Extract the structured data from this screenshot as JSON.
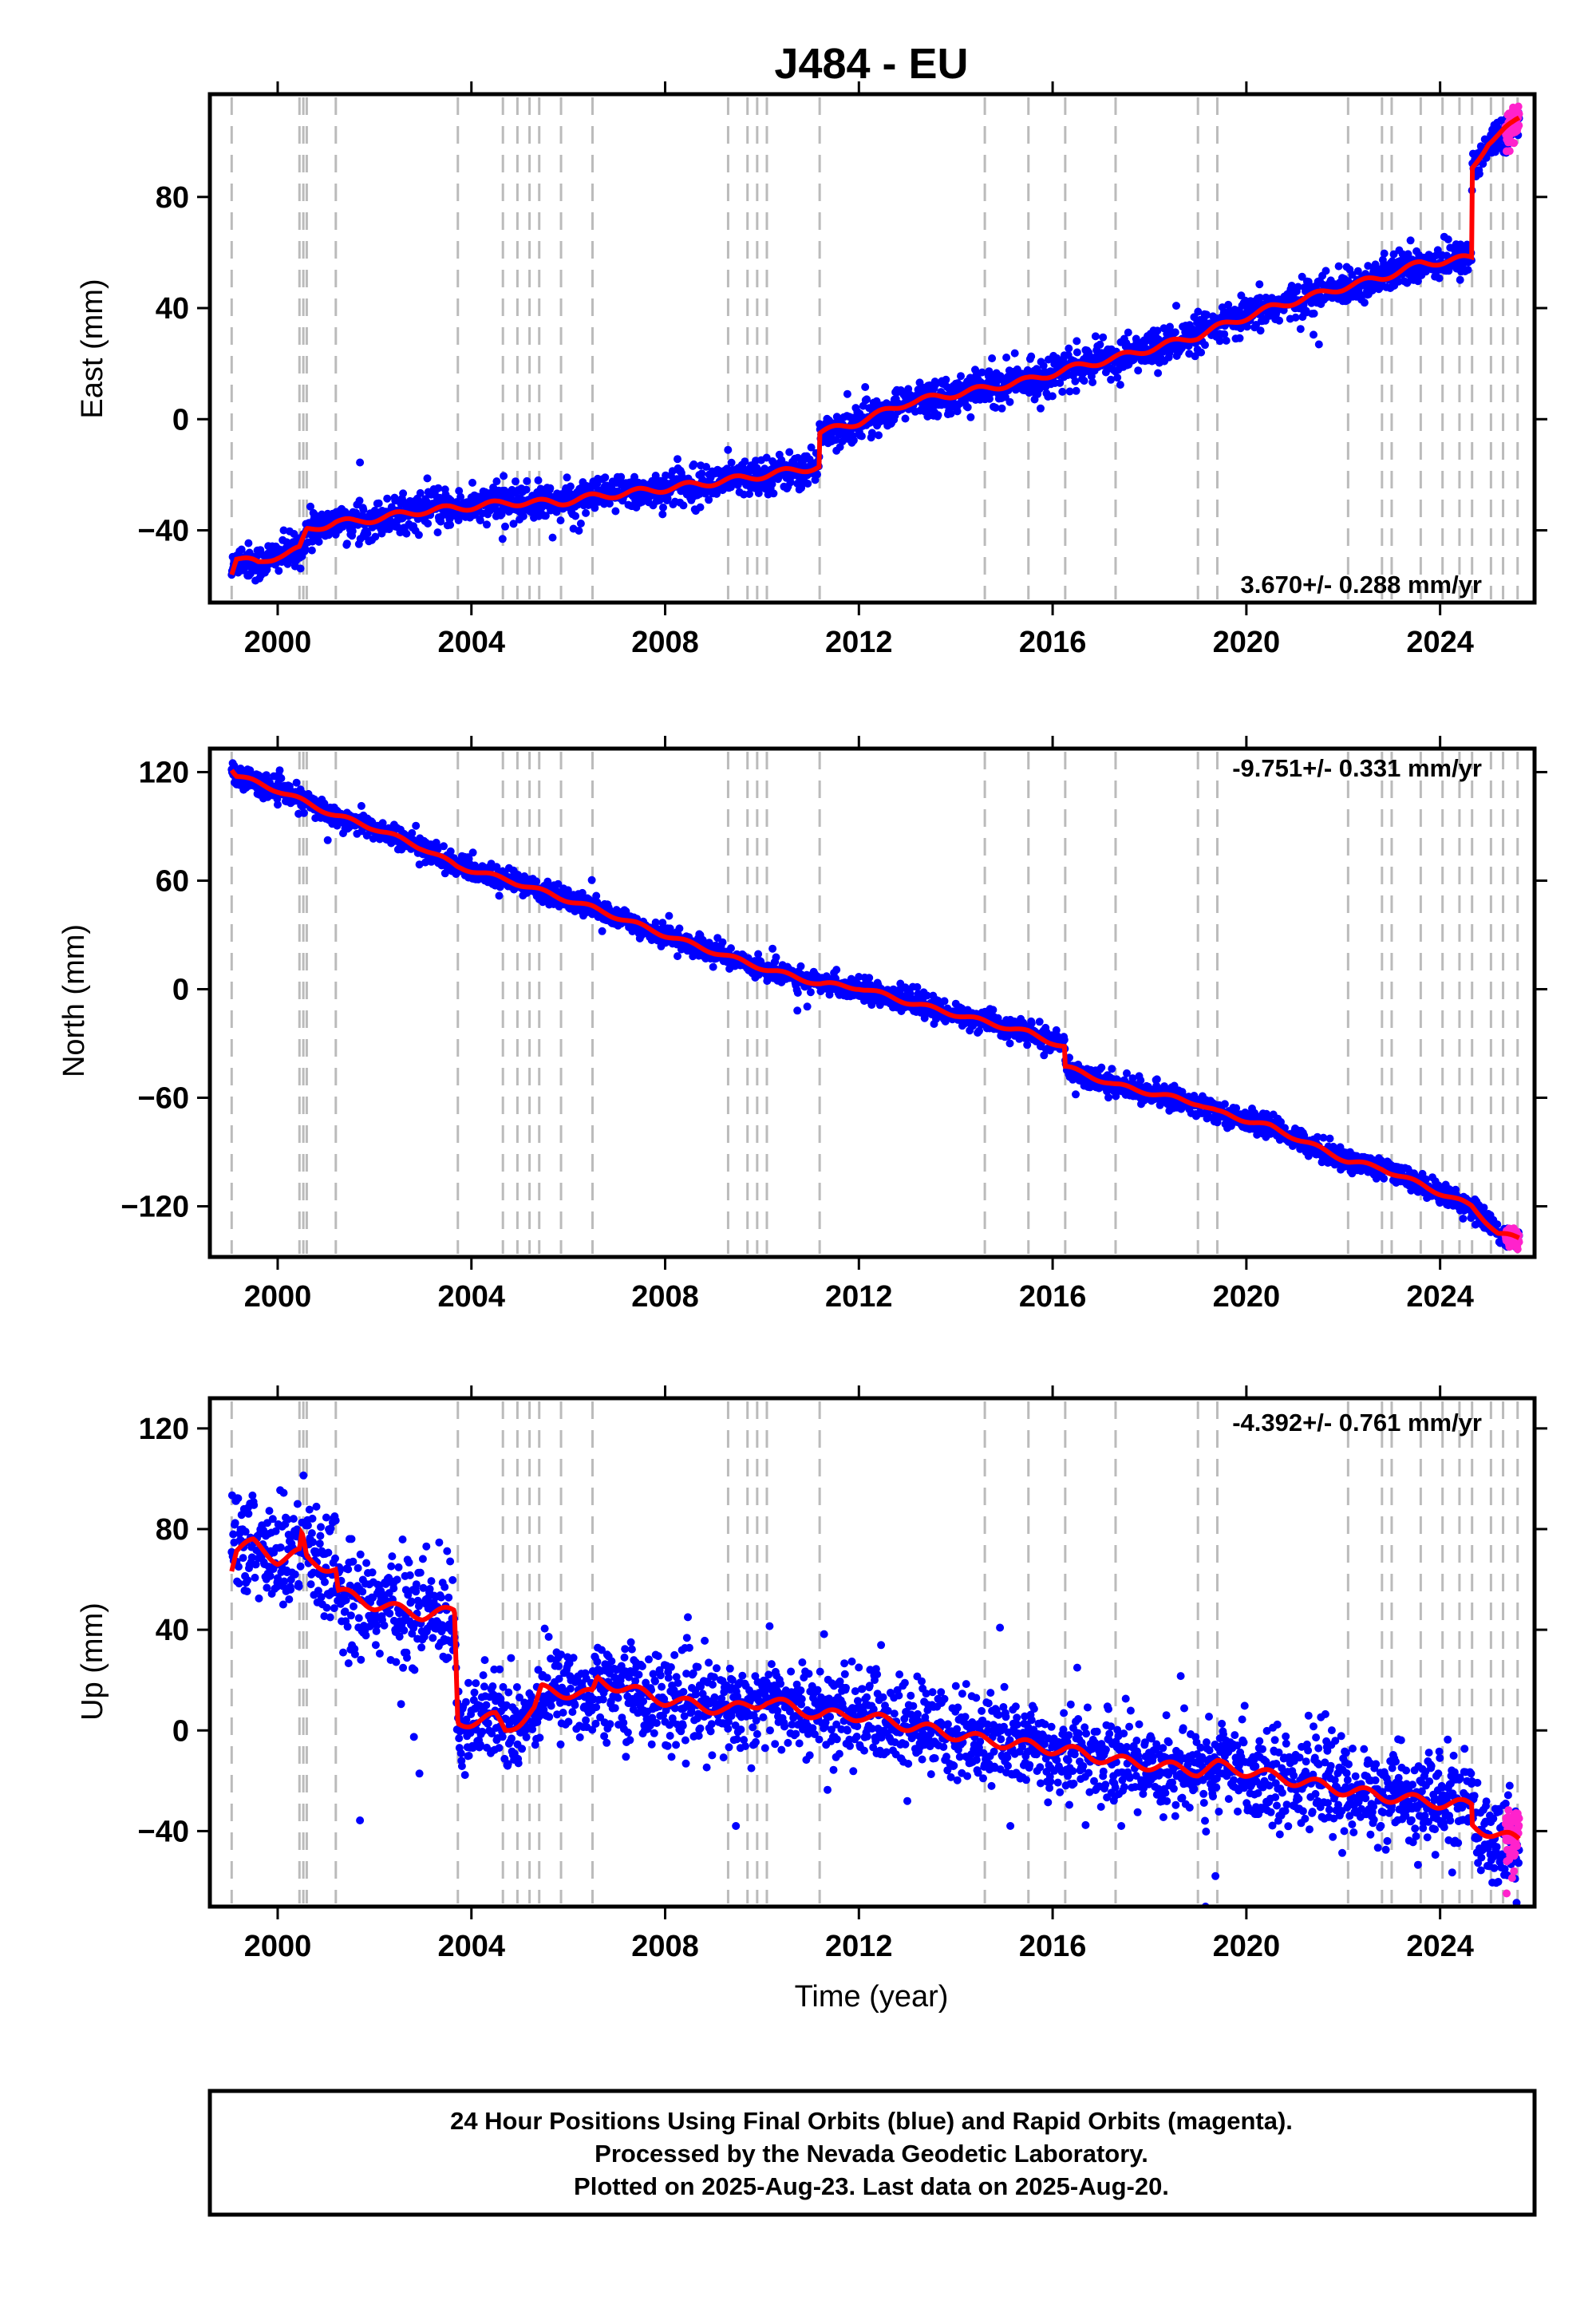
{
  "figure": {
    "title": "J484 - EU",
    "x_axis_label": "Time (year)",
    "footer_lines": [
      "24 Hour Positions Using Final Orbits (blue) and Rapid Orbits (magenta).",
      "Processed by the Nevada Geodetic Laboratory.",
      "Plotted on 2025-Aug-23. Last data on 2025-Aug-20."
    ],
    "colors": {
      "final": "#0000ff",
      "rapid": "#ff22cc",
      "model": "#ff0000",
      "steps": "#bbbbbb",
      "frame": "#000000"
    }
  },
  "chart_data": [
    {
      "type": "scatter",
      "component": "East",
      "ylabel": "East (mm)",
      "rate_label": "3.670+/- 0.288 mm/yr",
      "rate_position": "bottom-right",
      "xlim": [
        1998.6,
        2025.95
      ],
      "ylim": [
        -66,
        117
      ],
      "xticks": [
        2000,
        2004,
        2008,
        2012,
        2016,
        2020,
        2024
      ],
      "yticks": [
        -40,
        0,
        40,
        80
      ],
      "scatter_spread_mm": 3.2,
      "model": [
        [
          1999.05,
          -55
        ],
        [
          1999.15,
          -50
        ],
        [
          1999.6,
          -52
        ],
        [
          2000.0,
          -49
        ],
        [
          2000.45,
          -47
        ],
        [
          2000.6,
          -40
        ],
        [
          2001.2,
          -37
        ],
        [
          2001.6,
          -37
        ],
        [
          2003.0,
          -33
        ],
        [
          2003.7,
          -32
        ],
        [
          2004.8,
          -30
        ],
        [
          2005.8,
          -30
        ],
        [
          2006.5,
          -28
        ],
        [
          2008.0,
          -25
        ],
        [
          2009.3,
          -22
        ],
        [
          2010.1,
          -20
        ],
        [
          2011.18,
          -17
        ],
        [
          2011.19,
          -5
        ],
        [
          2012.0,
          -1
        ],
        [
          2013.0,
          6
        ],
        [
          2014.6,
          11
        ],
        [
          2015.5,
          14
        ],
        [
          2016.3,
          18
        ],
        [
          2017.3,
          22
        ],
        [
          2019.0,
          30
        ],
        [
          2019.4,
          33
        ],
        [
          2020.5,
          40
        ],
        [
          2022.1,
          48
        ],
        [
          2022.8,
          51
        ],
        [
          2023.6,
          56
        ],
        [
          2024.65,
          58
        ],
        [
          2024.66,
          90
        ],
        [
          2025.0,
          100
        ],
        [
          2025.5,
          106
        ],
        [
          2025.63,
          108
        ]
      ],
      "rapid_from": 2025.35
    },
    {
      "type": "scatter",
      "component": "North",
      "ylabel": "North (mm)",
      "rate_label": "-9.751+/- 0.331 mm/yr",
      "rate_position": "top-right",
      "xlim": [
        1998.6,
        2025.95
      ],
      "ylim": [
        -148,
        133
      ],
      "xticks": [
        2000,
        2004,
        2008,
        2012,
        2016,
        2020,
        2024
      ],
      "yticks": [
        -120,
        -60,
        0,
        60,
        120
      ],
      "scatter_spread_mm": 3.0,
      "model": [
        [
          1999.05,
          122
        ],
        [
          1999.15,
          118
        ],
        [
          2000.0,
          110
        ],
        [
          2001.2,
          96
        ],
        [
          2002.0,
          89
        ],
        [
          2003.0,
          78
        ],
        [
          2003.7,
          68
        ],
        [
          2004.8,
          60
        ],
        [
          2005.8,
          51
        ],
        [
          2006.5,
          45
        ],
        [
          2008.0,
          30
        ],
        [
          2009.3,
          18
        ],
        [
          2010.1,
          11
        ],
        [
          2011.2,
          3
        ],
        [
          2012.0,
          1
        ],
        [
          2013.0,
          -7
        ],
        [
          2014.6,
          -18
        ],
        [
          2015.5,
          -24
        ],
        [
          2016.25,
          -32
        ],
        [
          2016.26,
          -43
        ],
        [
          2017.3,
          -53
        ],
        [
          2019.0,
          -63
        ],
        [
          2019.4,
          -68
        ],
        [
          2020.5,
          -76
        ],
        [
          2022.1,
          -95
        ],
        [
          2022.8,
          -99
        ],
        [
          2023.6,
          -108
        ],
        [
          2024.65,
          -120
        ],
        [
          2025.2,
          -135
        ],
        [
          2025.63,
          -138
        ]
      ],
      "rapid_from": 2025.35
    },
    {
      "type": "scatter",
      "component": "Up",
      "ylabel": "Up (mm)",
      "rate_label": "-4.392+/- 0.761 mm/yr",
      "rate_position": "top-right",
      "xlim": [
        1998.6,
        2025.95
      ],
      "ylim": [
        -70,
        132
      ],
      "xticks": [
        2000,
        2004,
        2008,
        2012,
        2016,
        2020,
        2024
      ],
      "yticks": [
        -40,
        0,
        40,
        80,
        120
      ],
      "scatter_spread_mm": 9.0,
      "model": [
        [
          1999.05,
          65
        ],
        [
          1999.15,
          72
        ],
        [
          1999.5,
          74
        ],
        [
          2000.0,
          68
        ],
        [
          2000.45,
          70
        ],
        [
          2000.5,
          77
        ],
        [
          2000.6,
          68
        ],
        [
          2001.2,
          64
        ],
        [
          2001.25,
          55
        ],
        [
          2002.0,
          50
        ],
        [
          2003.0,
          46
        ],
        [
          2003.65,
          47
        ],
        [
          2003.72,
          3
        ],
        [
          2004.5,
          5
        ],
        [
          2004.7,
          0
        ],
        [
          2005.3,
          8
        ],
        [
          2005.45,
          16
        ],
        [
          2006.5,
          14
        ],
        [
          2006.6,
          20
        ],
        [
          2008.0,
          12
        ],
        [
          2009.3,
          8
        ],
        [
          2010.1,
          12
        ],
        [
          2011.2,
          6
        ],
        [
          2012.0,
          6
        ],
        [
          2013.0,
          2
        ],
        [
          2014.6,
          -4
        ],
        [
          2015.5,
          -6
        ],
        [
          2016.3,
          -8
        ],
        [
          2017.3,
          -12
        ],
        [
          2019.0,
          -16
        ],
        [
          2019.4,
          -14
        ],
        [
          2020.5,
          -18
        ],
        [
          2022.1,
          -24
        ],
        [
          2022.8,
          -26
        ],
        [
          2023.6,
          -28
        ],
        [
          2024.65,
          -30
        ],
        [
          2024.66,
          -38
        ],
        [
          2025.63,
          -44
        ]
      ],
      "rapid_from": 2025.35
    }
  ],
  "step_epochs": [
    1999.05,
    2000.45,
    2000.53,
    2000.6,
    2001.2,
    2003.72,
    2004.65,
    2004.95,
    2005.2,
    2005.4,
    2005.85,
    2006.5,
    2009.3,
    2009.7,
    2009.9,
    2010.1,
    2011.19,
    2014.6,
    2015.5,
    2016.26,
    2017.3,
    2019.0,
    2019.4,
    2022.1,
    2022.8,
    2023.0,
    2023.6,
    2024.05,
    2024.4,
    2024.66,
    2025.05,
    2025.3,
    2025.6
  ]
}
